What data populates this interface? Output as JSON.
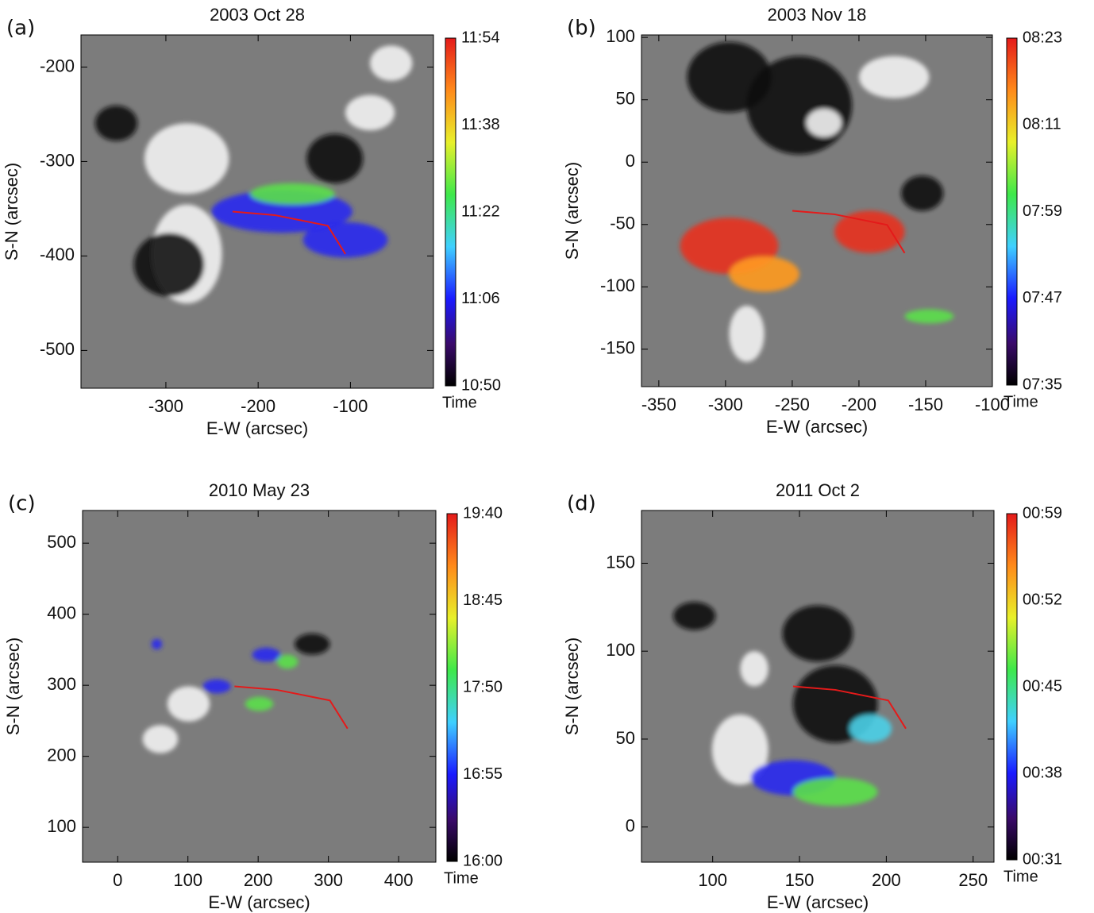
{
  "chart_data": [
    {
      "type": "image",
      "panel": "(a)",
      "title": "2003 Oct 28",
      "x_label": "E-W (arcsec)",
      "y_label": "S-N (arcsec)",
      "xlim": [
        -392,
        -10
      ],
      "ylim": [
        -540,
        -166
      ],
      "xticks": [
        -300,
        -200,
        -100
      ],
      "yticks": [
        -500,
        -400,
        -300,
        -200
      ],
      "colorbar": {
        "label": "Time",
        "ticks": [
          "10:50",
          "11:06",
          "11:22",
          "11:38",
          "11:54"
        ]
      }
    },
    {
      "type": "image",
      "panel": "(b)",
      "title": "2003 Nov 18",
      "x_label": "E-W (arcsec)",
      "y_label": "S-N (arcsec)",
      "xlim": [
        -363,
        -100
      ],
      "ylim": [
        -180,
        102
      ],
      "xticks": [
        -350,
        -300,
        -250,
        -200,
        -150,
        -100
      ],
      "yticks": [
        -150,
        -100,
        -50,
        0,
        50,
        100
      ],
      "colorbar": {
        "label": "Time",
        "ticks": [
          "07:35",
          "07:47",
          "07:59",
          "08:11",
          "08:23"
        ]
      }
    },
    {
      "type": "image",
      "panel": "(c)",
      "title": "2010 May 23",
      "x_label": "E-W (arcsec)",
      "y_label": "S-N (arcsec)",
      "xlim": [
        -50,
        453
      ],
      "ylim": [
        51,
        546
      ],
      "xticks": [
        0,
        100,
        200,
        300,
        400
      ],
      "yticks": [
        100,
        200,
        300,
        400,
        500
      ],
      "colorbar": {
        "label": "Time",
        "ticks": [
          "16:00",
          "16:55",
          "17:50",
          "18:45",
          "19:40"
        ]
      }
    },
    {
      "type": "image",
      "panel": "(d)",
      "title": "2011 Oct 2",
      "x_label": "E-W (arcsec)",
      "y_label": "S-N (arcsec)",
      "xlim": [
        59,
        262
      ],
      "ylim": [
        -20,
        180
      ],
      "xticks": [
        100,
        150,
        200,
        250
      ],
      "yticks": [
        0,
        50,
        100,
        150
      ],
      "colorbar": {
        "label": "Time",
        "ticks": [
          "00:31",
          "00:38",
          "00:45",
          "00:52",
          "00:59"
        ]
      }
    }
  ]
}
